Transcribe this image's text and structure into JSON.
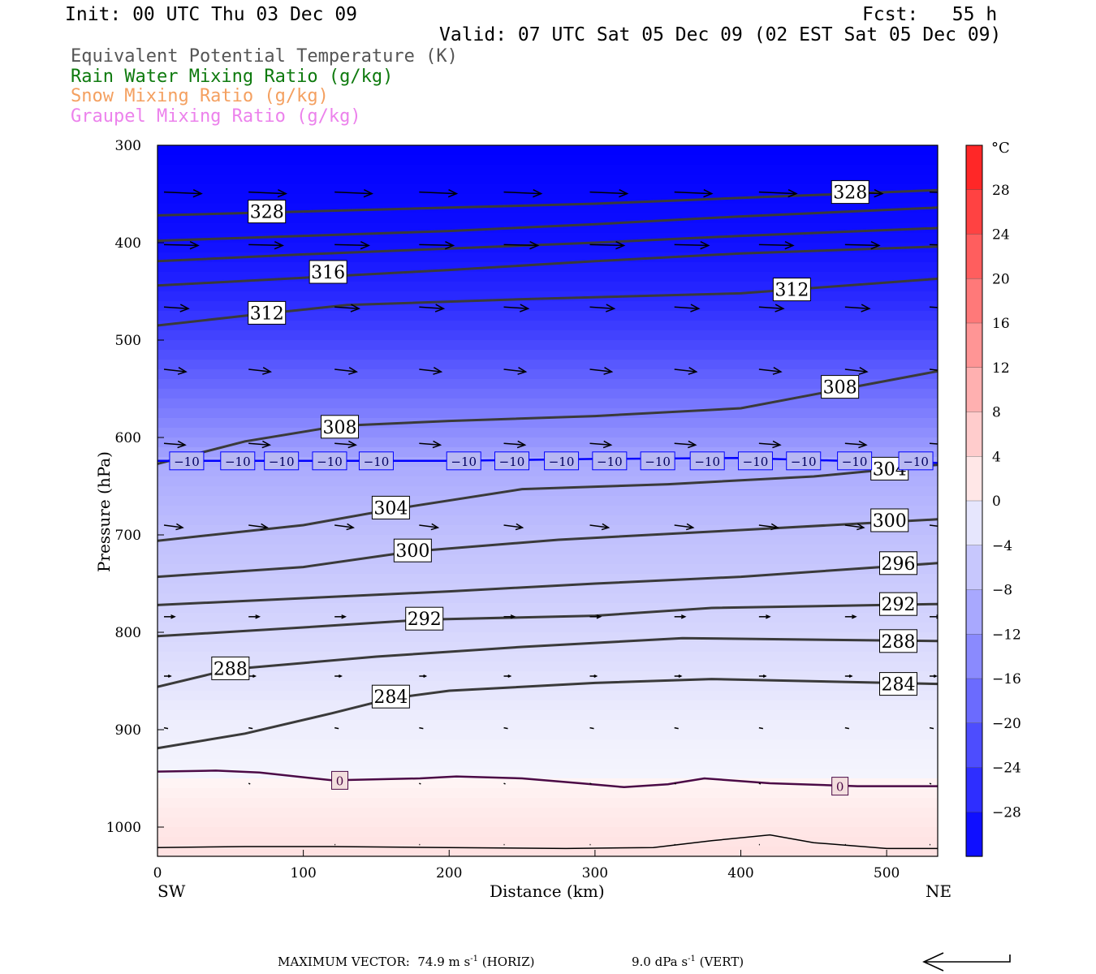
{
  "header": {
    "init": "Init: 00 UTC Thu 03 Dec 09",
    "fcst_label": "Fcst:",
    "fcst_value": "55 h",
    "valid": "Valid: 07 UTC Sat 05 Dec 09 (02 EST Sat 05 Dec 09)"
  },
  "legend": [
    {
      "text": "Equivalent Potential Temperature (K)",
      "color": "#555555"
    },
    {
      "text": "Rain Water Mixing Ratio (g/kg)",
      "color": "#0e7a0e"
    },
    {
      "text": "Snow Mixing Ratio (g/kg)",
      "color": "#f4a060"
    },
    {
      "text": "Graupel Mixing Ratio (g/kg)",
      "color": "#ec82ec"
    }
  ],
  "chart_data": {
    "type": "heatmap",
    "xlabel": "Distance (km)",
    "ylabel": "Pressure (hPa)",
    "xlim": [
      0,
      535
    ],
    "ylim": [
      1030,
      300
    ],
    "x_ticks": [
      0,
      100,
      200,
      300,
      400,
      500
    ],
    "y_ticks": [
      300,
      400,
      500,
      600,
      700,
      800,
      900,
      1000
    ],
    "x_end_labels": {
      "left": "SW",
      "right": "NE"
    },
    "colorbar": {
      "unit": "°C",
      "range": [
        -32,
        32
      ],
      "tick_values": [
        28,
        24,
        20,
        16,
        12,
        8,
        4,
        0,
        -4,
        -8,
        -12,
        -16,
        -20,
        -24,
        -28
      ],
      "tick_labels": [
        "28",
        "24",
        "20",
        "16",
        "12",
        "8",
        "4",
        "0",
        "−4",
        "−8",
        "−12",
        "−16",
        "−20",
        "−24",
        "−28"
      ]
    },
    "temperature_fill": [
      {
        "p": 300,
        "t": -32
      },
      {
        "p": 400,
        "t": -30
      },
      {
        "p": 450,
        "t": -27
      },
      {
        "p": 500,
        "t": -23
      },
      {
        "p": 550,
        "t": -18
      },
      {
        "p": 600,
        "t": -13
      },
      {
        "p": 625,
        "t": -10
      },
      {
        "p": 700,
        "t": -7
      },
      {
        "p": 800,
        "t": -4
      },
      {
        "p": 890,
        "t": -1
      },
      {
        "p": 950,
        "t": 0
      },
      {
        "p": 1000,
        "t": 2
      },
      {
        "p": 1030,
        "t": 3
      }
    ],
    "isotherm_minus10": {
      "value": -10,
      "label": "−10",
      "points": [
        [
          0,
          624
        ],
        [
          100,
          624
        ],
        [
          200,
          624
        ],
        [
          300,
          622
        ],
        [
          400,
          621
        ],
        [
          470,
          624
        ],
        [
          535,
          626
        ]
      ],
      "label_x": [
        20,
        55,
        85,
        118,
        150,
        210,
        243,
        277,
        310,
        343,
        377,
        410,
        443,
        478,
        520
      ]
    },
    "isotherm_zero": {
      "value": 0,
      "label": "0",
      "points": [
        [
          0,
          943
        ],
        [
          40,
          942
        ],
        [
          70,
          944
        ],
        [
          120,
          952
        ],
        [
          180,
          950
        ],
        [
          205,
          948
        ],
        [
          250,
          950
        ],
        [
          290,
          955
        ],
        [
          320,
          959
        ],
        [
          350,
          956
        ],
        [
          375,
          950
        ],
        [
          420,
          955
        ],
        [
          480,
          958
        ],
        [
          535,
          958
        ]
      ],
      "label_x": [
        125,
        468
      ]
    },
    "surface_line": [
      [
        0,
        1021
      ],
      [
        60,
        1020
      ],
      [
        120,
        1020
      ],
      [
        200,
        1021
      ],
      [
        280,
        1022
      ],
      [
        340,
        1021
      ],
      [
        380,
        1014
      ],
      [
        420,
        1008
      ],
      [
        450,
        1016
      ],
      [
        500,
        1022
      ],
      [
        535,
        1022
      ]
    ],
    "theta_e_contours": [
      {
        "label": "328",
        "points": [
          [
            0,
            372
          ],
          [
            100,
            368
          ],
          [
            200,
            364
          ],
          [
            300,
            360
          ],
          [
            400,
            354
          ],
          [
            470,
            350
          ],
          [
            535,
            346
          ]
        ],
        "labels_at": [
          [
            75,
            368
          ],
          [
            475,
            348
          ]
        ]
      },
      {
        "label": "",
        "points": [
          [
            0,
            398
          ],
          [
            100,
            393
          ],
          [
            200,
            388
          ],
          [
            300,
            381
          ],
          [
            400,
            373
          ],
          [
            535,
            364
          ]
        ],
        "labels_at": []
      },
      {
        "label": "",
        "points": [
          [
            0,
            419
          ],
          [
            100,
            412
          ],
          [
            200,
            406
          ],
          [
            300,
            400
          ],
          [
            400,
            393
          ],
          [
            535,
            385
          ]
        ],
        "labels_at": []
      },
      {
        "label": "316",
        "points": [
          [
            0,
            444
          ],
          [
            100,
            436
          ],
          [
            200,
            428
          ],
          [
            300,
            419
          ],
          [
            400,
            411
          ],
          [
            535,
            404
          ]
        ],
        "labels_at": [
          [
            117,
            430
          ]
        ]
      },
      {
        "label": "312",
        "points": [
          [
            0,
            485
          ],
          [
            60,
            475
          ],
          [
            130,
            464
          ],
          [
            250,
            458
          ],
          [
            400,
            452
          ],
          [
            535,
            437
          ]
        ],
        "labels_at": [
          [
            75,
            472
          ],
          [
            435,
            448
          ]
        ]
      },
      {
        "label": "308",
        "points": [
          [
            0,
            627
          ],
          [
            60,
            604
          ],
          [
            125,
            588
          ],
          [
            200,
            583
          ],
          [
            300,
            578
          ],
          [
            400,
            570
          ],
          [
            460,
            553
          ],
          [
            535,
            532
          ]
        ],
        "labels_at": [
          [
            125,
            589
          ],
          [
            468,
            548
          ]
        ]
      },
      {
        "label": "304",
        "points": [
          [
            0,
            706
          ],
          [
            100,
            690
          ],
          [
            160,
            674
          ],
          [
            250,
            653
          ],
          [
            350,
            648
          ],
          [
            450,
            640
          ],
          [
            535,
            628
          ]
        ],
        "labels_at": [
          [
            160,
            672
          ],
          [
            502,
            632
          ]
        ]
      },
      {
        "label": "300",
        "points": [
          [
            0,
            743
          ],
          [
            100,
            733
          ],
          [
            175,
            717
          ],
          [
            275,
            705
          ],
          [
            400,
            695
          ],
          [
            535,
            684
          ]
        ],
        "labels_at": [
          [
            175,
            716
          ],
          [
            502,
            685
          ]
        ]
      },
      {
        "label": "296",
        "points": [
          [
            0,
            772
          ],
          [
            100,
            765
          ],
          [
            200,
            758
          ],
          [
            300,
            750
          ],
          [
            400,
            743
          ],
          [
            535,
            729
          ]
        ],
        "labels_at": [
          [
            508,
            729
          ]
        ]
      },
      {
        "label": "292",
        "points": [
          [
            0,
            804
          ],
          [
            100,
            795
          ],
          [
            183,
            787
          ],
          [
            300,
            783
          ],
          [
            380,
            775
          ],
          [
            535,
            771
          ]
        ],
        "labels_at": [
          [
            183,
            786
          ],
          [
            508,
            771
          ]
        ]
      },
      {
        "label": "288",
        "points": [
          [
            0,
            856
          ],
          [
            50,
            838
          ],
          [
            150,
            825
          ],
          [
            250,
            815
          ],
          [
            360,
            806
          ],
          [
            535,
            809
          ]
        ],
        "labels_at": [
          [
            50,
            837
          ],
          [
            508,
            809
          ]
        ]
      },
      {
        "label": "284",
        "points": [
          [
            0,
            919
          ],
          [
            60,
            904
          ],
          [
            120,
            883
          ],
          [
            160,
            868
          ],
          [
            200,
            860
          ],
          [
            300,
            852
          ],
          [
            380,
            848
          ],
          [
            535,
            853
          ]
        ],
        "labels_at": [
          [
            160,
            866
          ],
          [
            508,
            853
          ]
        ]
      }
    ],
    "wind_vectors": [
      {
        "level": 348,
        "u": 46,
        "w": 2,
        "xs": [
          0,
          58,
          117,
          175,
          233,
          292,
          350,
          408,
          467,
          525
        ]
      },
      {
        "level": 402,
        "u": 42,
        "w": 1,
        "xs": [
          0,
          58,
          117,
          175,
          233,
          292,
          350,
          408,
          467,
          525
        ]
      },
      {
        "level": 466,
        "u": 30,
        "w": 2,
        "xs": [
          0,
          58,
          117,
          175,
          233,
          292,
          350,
          408,
          467,
          525
        ]
      },
      {
        "level": 530,
        "u": 27,
        "w": 3,
        "xs": [
          0,
          58,
          117,
          175,
          233,
          292,
          350,
          408,
          467,
          525
        ]
      },
      {
        "level": 606,
        "u": 26,
        "w": 2,
        "xs": [
          0,
          58,
          117,
          175,
          233,
          292,
          350,
          408,
          467,
          525
        ]
      },
      {
        "level": 690,
        "u": 23,
        "w": 3,
        "xs": [
          0,
          58,
          117,
          175,
          233,
          292,
          350,
          408,
          467,
          525
        ]
      },
      {
        "level": 784,
        "u": 13,
        "w": 0,
        "xs": [
          0,
          58,
          117,
          175,
          233,
          292,
          350,
          408,
          467,
          525
        ]
      },
      {
        "level": 845,
        "u": 8,
        "w": 0,
        "xs": [
          0,
          58,
          117,
          175,
          233,
          292,
          350,
          408,
          467,
          525
        ]
      },
      {
        "level": 898,
        "u": 5,
        "w": 1,
        "xs": [
          0,
          58,
          117,
          175,
          233,
          292,
          350,
          408,
          467,
          525
        ]
      },
      {
        "level": 955,
        "u": 2,
        "w": 1,
        "xs": [
          58,
          117,
          175,
          233,
          292,
          350,
          408,
          467,
          525
        ]
      },
      {
        "level": 1018,
        "u": 1,
        "w": 0,
        "xs": [
          117,
          175,
          233,
          292,
          350,
          408,
          467,
          525
        ]
      }
    ]
  },
  "footer": {
    "max_vector_label": "MAXIMUM VECTOR:",
    "horiz_value": "74.9 m s",
    "horiz_exp": "-1",
    "horiz_unit": "(HORIZ)",
    "vert_value": "9.0 dPa s",
    "vert_exp": "-1",
    "vert_unit": "(VERT)"
  }
}
